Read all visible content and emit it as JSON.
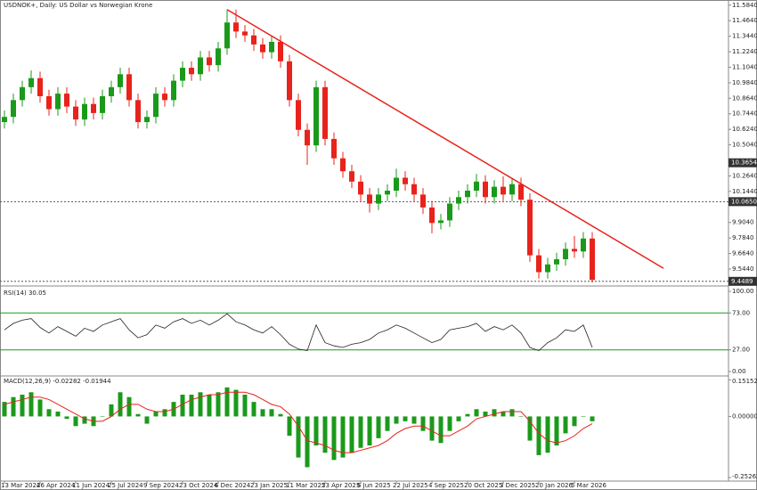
{
  "chart_data": {
    "type": "candlestick",
    "title": "USDNOK+, Daily: US Dollar vs Norwegian Krone",
    "categories": [
      "13 Mar 2024",
      null,
      null,
      null,
      "26 Apr 2024",
      null,
      null,
      null,
      "11 Jun 2024",
      null,
      null,
      null,
      "25 Jul 2024",
      null,
      null,
      null,
      "9 Sep 2024",
      null,
      null,
      null,
      "23 Oct 2024",
      null,
      null,
      null,
      "6 Dec 2024",
      null,
      null,
      null,
      "23 Jan 2025",
      null,
      null,
      null,
      "11 Mar 2025",
      null,
      null,
      null,
      "23 Apr 2025",
      null,
      null,
      null,
      "6 Jun 2025",
      null,
      null,
      null,
      "22 Jul 2025",
      null,
      null,
      null,
      "4 Sep 2025",
      null,
      null,
      null,
      "20 Oct 2025",
      null,
      null,
      null,
      "3 Dec 2025",
      null,
      null,
      null,
      "20 Jan 2026",
      null,
      null,
      null,
      "5 Mar 2026",
      null,
      null
    ],
    "open": [
      10.68,
      10.72,
      10.85,
      10.95,
      11.02,
      10.88,
      10.78,
      10.9,
      10.8,
      10.7,
      10.82,
      10.75,
      10.88,
      10.95,
      11.05,
      10.85,
      10.68,
      10.72,
      10.9,
      10.85,
      11.0,
      11.1,
      11.05,
      11.18,
      11.12,
      11.25,
      11.45,
      11.38,
      11.35,
      11.28,
      11.22,
      11.3,
      11.15,
      10.85,
      10.62,
      10.5,
      10.95,
      10.55,
      10.4,
      10.3,
      10.22,
      10.12,
      10.05,
      10.12,
      10.15,
      10.25,
      10.2,
      10.12,
      10.02,
      9.9,
      9.92,
      10.05,
      10.1,
      10.15,
      10.22,
      10.1,
      10.18,
      10.12,
      10.2,
      10.08,
      9.65,
      9.52,
      9.58,
      9.62,
      9.7,
      9.68,
      9.78
    ],
    "high": [
      10.77,
      10.9,
      11.0,
      11.08,
      11.07,
      10.93,
      10.95,
      10.95,
      10.85,
      10.87,
      10.87,
      10.93,
      11.0,
      11.1,
      11.1,
      10.9,
      10.77,
      10.95,
      10.95,
      11.05,
      11.15,
      11.15,
      11.23,
      11.23,
      11.3,
      11.55,
      11.55,
      11.43,
      11.4,
      11.33,
      11.35,
      11.35,
      11.2,
      10.9,
      10.67,
      11.0,
      11.0,
      10.6,
      10.45,
      10.35,
      10.27,
      10.17,
      10.17,
      10.2,
      10.32,
      10.3,
      10.25,
      10.17,
      10.07,
      9.97,
      10.1,
      10.15,
      10.2,
      10.28,
      10.27,
      10.23,
      10.26,
      10.25,
      10.25,
      10.13,
      9.7,
      9.63,
      9.67,
      9.75,
      9.8,
      9.83,
      9.83
    ],
    "low": [
      10.63,
      10.67,
      10.8,
      10.9,
      10.83,
      10.73,
      10.73,
      10.75,
      10.65,
      10.65,
      10.7,
      10.7,
      10.83,
      10.9,
      10.8,
      10.63,
      10.63,
      10.67,
      10.8,
      10.8,
      10.95,
      11.0,
      11.0,
      11.07,
      11.07,
      11.2,
      11.33,
      11.3,
      11.23,
      11.17,
      11.17,
      11.1,
      10.8,
      10.57,
      10.35,
      10.45,
      10.5,
      10.35,
      10.25,
      10.17,
      10.07,
      9.98,
      10.0,
      10.07,
      10.1,
      10.15,
      10.07,
      9.97,
      9.82,
      9.85,
      9.87,
      10.0,
      10.05,
      10.1,
      10.05,
      10.05,
      10.07,
      10.07,
      10.03,
      9.6,
      9.47,
      9.47,
      9.53,
      9.57,
      9.63,
      9.63,
      9.44
    ],
    "close": [
      10.72,
      10.85,
      10.95,
      11.02,
      10.88,
      10.78,
      10.9,
      10.8,
      10.7,
      10.82,
      10.75,
      10.88,
      10.95,
      11.05,
      10.85,
      10.68,
      10.72,
      10.9,
      10.85,
      11.0,
      11.1,
      11.05,
      11.18,
      11.12,
      11.25,
      11.45,
      11.38,
      11.35,
      11.28,
      11.22,
      11.3,
      11.15,
      10.85,
      10.62,
      10.5,
      10.95,
      10.55,
      10.4,
      10.3,
      10.22,
      10.12,
      10.05,
      10.12,
      10.15,
      10.25,
      10.2,
      10.12,
      10.02,
      9.9,
      9.92,
      10.05,
      10.1,
      10.15,
      10.22,
      10.1,
      10.18,
      10.12,
      10.2,
      10.08,
      9.65,
      9.52,
      9.58,
      9.62,
      9.7,
      9.68,
      9.78,
      9.46
    ],
    "up_color": "#1a9a1a",
    "down_color": "#e8231b",
    "ylim": [
      9.42,
      11.61
    ],
    "yticks": [
      {
        "value": 11.584,
        "label": "11.5840"
      },
      {
        "value": 11.464,
        "label": "11.4640"
      },
      {
        "value": 11.344,
        "label": "11.3440"
      },
      {
        "value": 11.224,
        "label": "11.2240"
      },
      {
        "value": 11.104,
        "label": "11.1040"
      },
      {
        "value": 10.984,
        "label": "10.9840"
      },
      {
        "value": 10.864,
        "label": "10.8640"
      },
      {
        "value": 10.744,
        "label": "10.7440"
      },
      {
        "value": 10.624,
        "label": "10.6240"
      },
      {
        "value": 10.504,
        "label": "10.5040"
      },
      {
        "value": 10.264,
        "label": "10.2640"
      },
      {
        "value": 10.144,
        "label": "10.1440"
      },
      {
        "value": 9.904,
        "label": "9.9040"
      },
      {
        "value": 9.784,
        "label": "9.7840"
      },
      {
        "value": 9.664,
        "label": "9.6640"
      },
      {
        "value": 9.544,
        "label": "9.5440"
      }
    ],
    "price_levels": [
      {
        "value": 10.3654,
        "label": "10.3654"
      },
      {
        "value": 10.065,
        "label": "10.0650"
      },
      {
        "value": 9.4489,
        "label": "9.4489"
      }
    ],
    "trendline": {
      "color": "#e8231b",
      "x": [
        25,
        74
      ],
      "y": [
        11.55,
        9.55
      ]
    },
    "rsi": {
      "title": "RSI(14) 30.05",
      "color": "#222222",
      "level_color": "#1a9a1a",
      "values": [
        52,
        60,
        64,
        66,
        55,
        48,
        56,
        50,
        44,
        54,
        50,
        58,
        62,
        66,
        52,
        42,
        46,
        58,
        54,
        62,
        66,
        60,
        64,
        58,
        64,
        72,
        62,
        58,
        52,
        48,
        56,
        46,
        34,
        28,
        26,
        58,
        36,
        32,
        30,
        34,
        36,
        40,
        48,
        52,
        58,
        54,
        48,
        42,
        36,
        40,
        52,
        54,
        56,
        60,
        50,
        56,
        52,
        58,
        48,
        30,
        26,
        36,
        42,
        52,
        50,
        58,
        30.05
      ],
      "ylim": [
        0,
        100
      ],
      "levels": [
        73,
        27
      ],
      "yticks": [
        {
          "value": 100,
          "label": "100.00"
        },
        {
          "value": 73,
          "label": "73.00"
        },
        {
          "value": 27,
          "label": "27.00"
        },
        {
          "value": 0,
          "label": "0.00"
        }
      ]
    },
    "macd": {
      "title": "MACD(12,26,9) -0.02282 -0.01944",
      "hist_color": "#1a9a1a",
      "signal_color": "#e8231b",
      "values": [
        0.06,
        0.08,
        0.09,
        0.1,
        0.07,
        0.03,
        0.02,
        -0.01,
        -0.04,
        -0.03,
        -0.04,
        0.0,
        0.05,
        0.1,
        0.08,
        0.01,
        -0.03,
        0.02,
        0.03,
        0.06,
        0.09,
        0.09,
        0.1,
        0.09,
        0.1,
        0.12,
        0.11,
        0.09,
        0.06,
        0.03,
        0.03,
        0.01,
        -0.08,
        -0.17,
        -0.21,
        -0.12,
        -0.15,
        -0.18,
        -0.17,
        -0.15,
        -0.13,
        -0.12,
        -0.09,
        -0.06,
        -0.03,
        -0.02,
        -0.03,
        -0.06,
        -0.1,
        -0.11,
        -0.06,
        -0.02,
        0.01,
        0.03,
        0.02,
        0.03,
        0.02,
        0.03,
        0.0,
        -0.1,
        -0.16,
        -0.15,
        -0.12,
        -0.07,
        -0.04,
        0.0,
        -0.02
      ],
      "signal": [
        0.05,
        0.06,
        0.07,
        0.08,
        0.08,
        0.07,
        0.05,
        0.03,
        0.01,
        -0.01,
        -0.02,
        -0.02,
        0.0,
        0.03,
        0.05,
        0.05,
        0.03,
        0.02,
        0.02,
        0.03,
        0.05,
        0.07,
        0.08,
        0.09,
        0.09,
        0.1,
        0.1,
        0.1,
        0.09,
        0.07,
        0.05,
        0.04,
        0.01,
        -0.04,
        -0.1,
        -0.11,
        -0.12,
        -0.14,
        -0.15,
        -0.15,
        -0.14,
        -0.13,
        -0.12,
        -0.1,
        -0.07,
        -0.05,
        -0.04,
        -0.04,
        -0.06,
        -0.08,
        -0.08,
        -0.06,
        -0.04,
        -0.01,
        0.0,
        0.01,
        0.02,
        0.02,
        0.02,
        -0.02,
        -0.07,
        -0.1,
        -0.11,
        -0.1,
        -0.08,
        -0.05,
        -0.03
      ],
      "ylim": [
        -0.26,
        0.16
      ],
      "yticks": [
        {
          "value": 0.15152,
          "label": "0.15152"
        },
        {
          "value": 0,
          "label": "0.00000"
        },
        {
          "value": -0.25262,
          "label": "-0.25262"
        }
      ]
    }
  }
}
